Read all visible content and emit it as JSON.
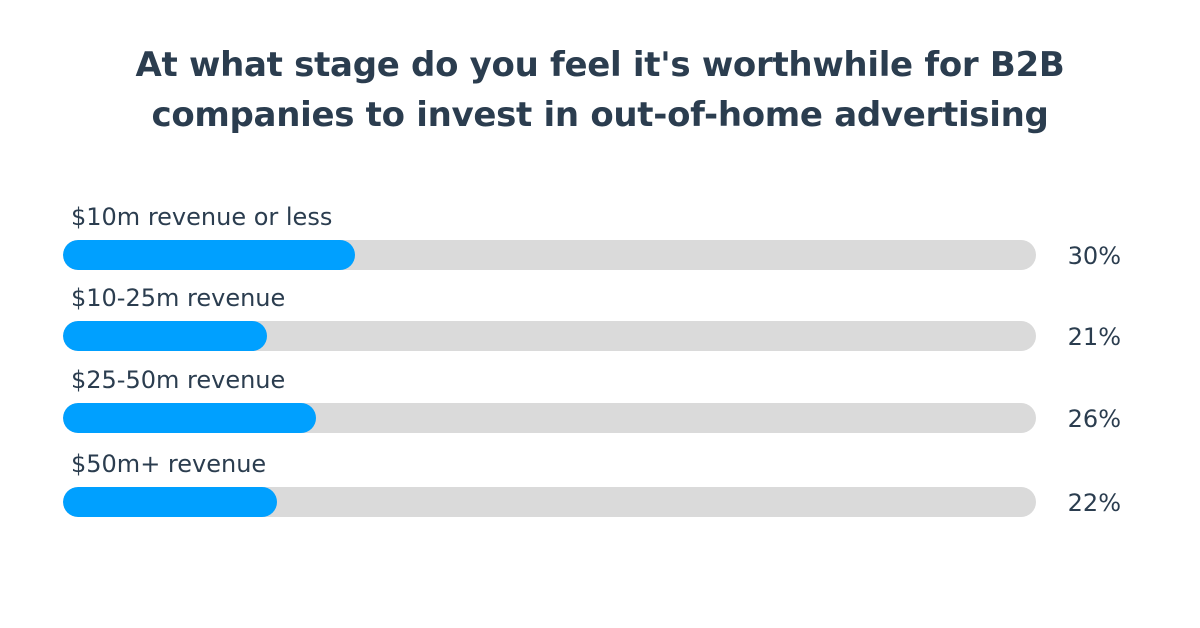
{
  "colors": {
    "title": "#2b3d4f",
    "bar_fill": "#00a0ff",
    "bar_track": "#dadada"
  },
  "chart_data": {
    "type": "bar",
    "orientation": "horizontal",
    "title_lines": [
      "At what stage do you feel it's worthwhile for B2B",
      "companies to invest in out-of-home advertising"
    ],
    "categories": [
      "$10m revenue or less",
      "$10-25m revenue",
      "$25-50m revenue",
      "$50m+ revenue"
    ],
    "values": [
      30,
      21,
      26,
      22
    ],
    "value_labels": [
      "30%",
      "21%",
      "26%",
      "22%"
    ],
    "xlim": [
      0,
      100
    ],
    "unit": "%",
    "grid": false,
    "legend": "none"
  }
}
